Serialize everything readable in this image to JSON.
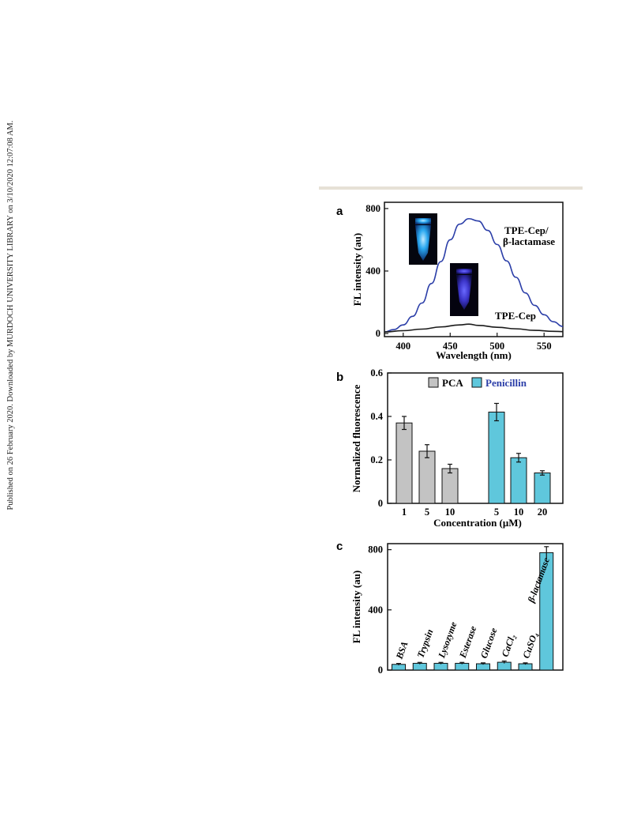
{
  "side_note": "Published on 26 February 2020. Downloaded by MURDOCH UNIVERSITY LIBRARY on 3/10/2020 12:07:08 AM.",
  "chart_data": [
    {
      "panel": "a",
      "type": "line",
      "xlabel": "Wavelength (nm)",
      "ylabel": "FL intensity (au)",
      "xlim": [
        380,
        570
      ],
      "ylim": [
        -20,
        840
      ],
      "x_ticks": [
        400,
        450,
        500,
        550
      ],
      "y_ticks": [
        0,
        400,
        800
      ],
      "series": [
        {
          "name": "TPE-Cep/ β-lactamase",
          "label_line1": "TPE-Cep/",
          "label_line2": "β-lactamase",
          "color": "#2b3ea8",
          "x": [
            380,
            390,
            400,
            410,
            420,
            430,
            440,
            450,
            460,
            470,
            480,
            490,
            500,
            510,
            520,
            530,
            540,
            550,
            560,
            570
          ],
          "y": [
            10,
            25,
            55,
            110,
            195,
            320,
            460,
            600,
            700,
            735,
            720,
            660,
            570,
            465,
            360,
            260,
            180,
            120,
            75,
            45
          ]
        },
        {
          "name": "TPE-Cep",
          "label_line1": "TPE-Cep",
          "color": "#1a1a1a",
          "x": [
            380,
            400,
            420,
            440,
            460,
            470,
            480,
            500,
            520,
            540,
            560,
            570
          ],
          "y": [
            10,
            18,
            28,
            42,
            55,
            60,
            52,
            40,
            30,
            20,
            14,
            12
          ]
        }
      ],
      "insets": [
        {
          "name": "tube-bright",
          "glow": "#2aa8f0"
        },
        {
          "name": "tube-dim",
          "glow": "#3b34c8"
        }
      ]
    },
    {
      "panel": "b",
      "type": "bar",
      "xlabel": "Concentration (μM)",
      "ylabel": "Normalized fluorescence",
      "ylim": [
        0,
        0.6
      ],
      "y_ticks": [
        "0",
        "0.2",
        "0.4",
        "0.6"
      ],
      "series": [
        {
          "name": "PCA",
          "color": "#c3c3c3",
          "legend_color": "#111111",
          "categories": [
            "1",
            "5",
            "10"
          ],
          "values": [
            0.37,
            0.24,
            0.16
          ],
          "errors": [
            0.03,
            0.03,
            0.02
          ]
        },
        {
          "name": "Penicillin",
          "color": "#5fc7dc",
          "legend_color": "#2b3ea8",
          "categories": [
            "5",
            "10",
            "20"
          ],
          "values": [
            0.42,
            0.21,
            0.14
          ],
          "errors": [
            0.04,
            0.02,
            0.01
          ]
        }
      ]
    },
    {
      "panel": "c",
      "type": "bar",
      "ylabel": "FL intensity (au)",
      "ylim": [
        0,
        840
      ],
      "y_ticks": [
        0,
        400,
        800
      ],
      "color": "#5fc7dc",
      "categories": [
        "BSA",
        "Trypsin",
        "Lysozyme",
        "Esterase",
        "Glucose",
        "CaCl₂",
        "CuSO₄",
        "β-lactamase"
      ],
      "values": [
        38,
        45,
        45,
        45,
        42,
        52,
        42,
        780
      ],
      "errors": [
        6,
        6,
        6,
        6,
        6,
        8,
        6,
        40
      ]
    }
  ]
}
